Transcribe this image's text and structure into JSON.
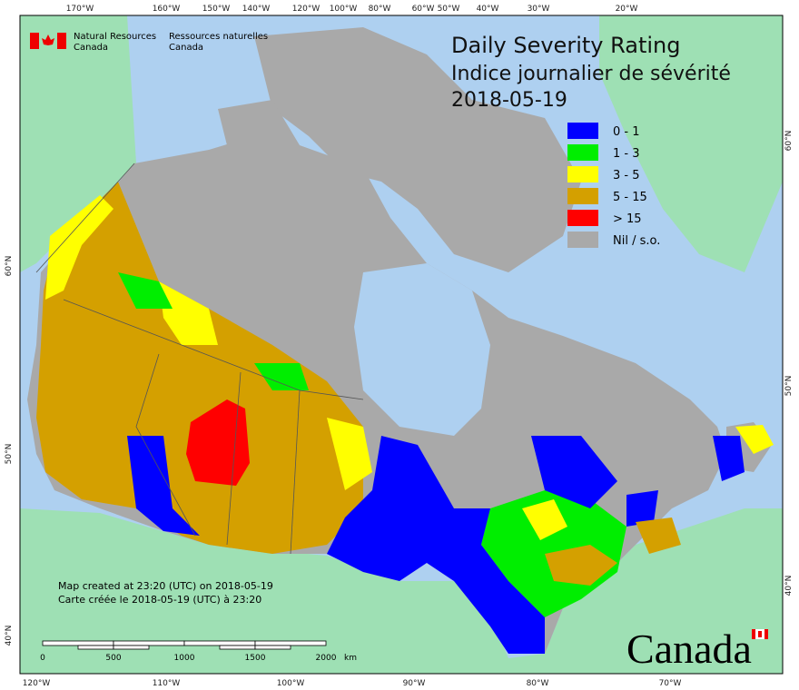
{
  "header": {
    "title": "Daily Severity Rating",
    "title_fr": "Indice journalier de sévérité",
    "date": "2018-05-19"
  },
  "logo": {
    "en": [
      "Natural Resources",
      "Canada"
    ],
    "fr": [
      "Ressources naturelles",
      "Canada"
    ]
  },
  "legend": [
    {
      "label": "0 - 1",
      "color": "#0000ff"
    },
    {
      "label": "1 - 3",
      "color": "#00ee00"
    },
    {
      "label": "3 - 5",
      "color": "#ffff00"
    },
    {
      "label": "5 - 15",
      "color": "#d4a000"
    },
    {
      "label": "> 15",
      "color": "#ff0000"
    },
    {
      "label": "Nil / s.o.",
      "color": "#a9a9a9"
    }
  ],
  "graticule": {
    "top": [
      "170°W",
      "160°W",
      "150°W",
      "140°W",
      "120°W",
      "100°W",
      "80°W",
      "60°W",
      "50°W",
      "40°W",
      "30°W",
      "20°W"
    ],
    "bottom": [
      "120°W",
      "110°W",
      "100°W",
      "90°W",
      "80°W",
      "70°W"
    ],
    "left": [
      "60°N",
      "50°N",
      "40°N"
    ],
    "right": [
      "60°N",
      "50°N",
      "40°N"
    ]
  },
  "notes": [
    "Map created at 23:20 (UTC) on 2018-05-19",
    "Carte créée le 2018-05-19 (UTC) à 23:20"
  ],
  "scale_bar": {
    "labels": [
      "0",
      "500",
      "1000",
      "1500",
      "2000"
    ],
    "unit": "km"
  },
  "wordmark": "Canada"
}
